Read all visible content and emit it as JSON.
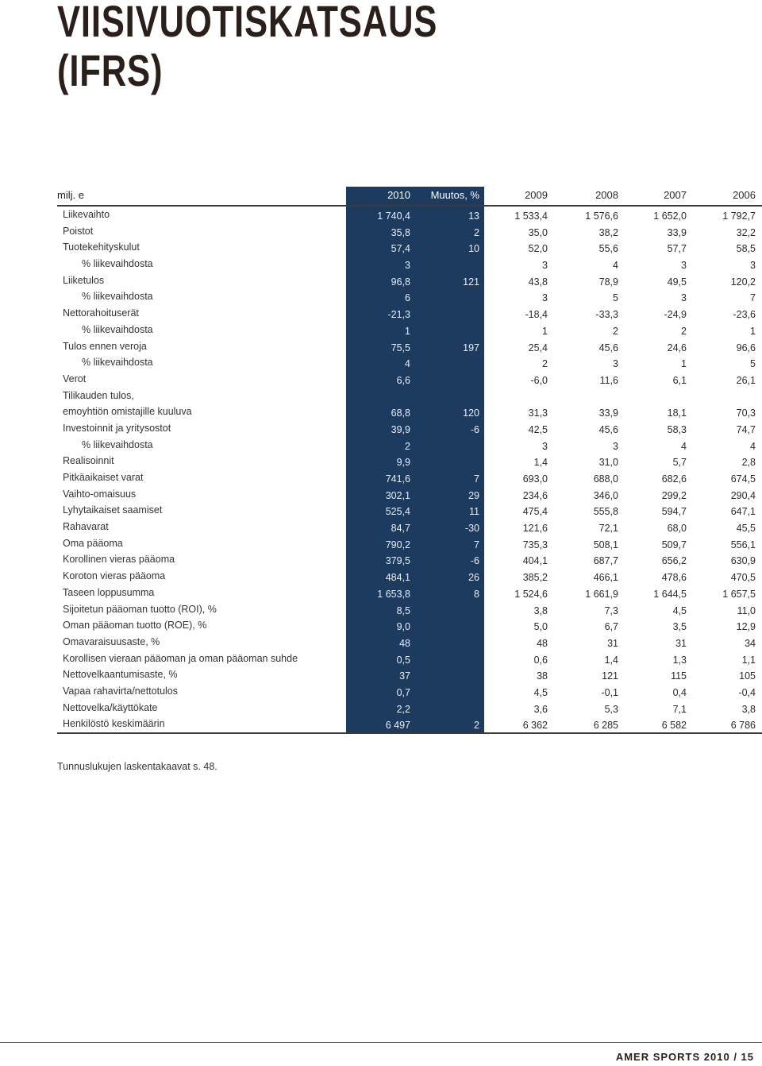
{
  "title": [
    "VIISIVUOTISKATSAUS",
    "(IFRS)"
  ],
  "header": {
    "unit": "milj. e",
    "cols": [
      "2010",
      "Muutos, %",
      "2009",
      "2008",
      "2007",
      "2006"
    ]
  },
  "rows": [
    {
      "label": "Liikevaihto",
      "indent": false,
      "v": [
        "1 740,4",
        "13",
        "1 533,4",
        "1 576,6",
        "1 652,0",
        "1 792,7"
      ]
    },
    {
      "label": "Poistot",
      "indent": false,
      "v": [
        "35,8",
        "2",
        "35,0",
        "38,2",
        "33,9",
        "32,2"
      ]
    },
    {
      "label": "Tuotekehityskulut",
      "indent": false,
      "v": [
        "57,4",
        "10",
        "52,0",
        "55,6",
        "57,7",
        "58,5"
      ]
    },
    {
      "label": "% liikevaihdosta",
      "indent": true,
      "v": [
        "3",
        "",
        "3",
        "4",
        "3",
        "3"
      ]
    },
    {
      "label": "Liiketulos",
      "indent": false,
      "v": [
        "96,8",
        "121",
        "43,8",
        "78,9",
        "49,5",
        "120,2"
      ]
    },
    {
      "label": "% liikevaihdosta",
      "indent": true,
      "v": [
        "6",
        "",
        "3",
        "5",
        "3",
        "7"
      ]
    },
    {
      "label": "Nettorahoituserät",
      "indent": false,
      "v": [
        "-21,3",
        "",
        "-18,4",
        "-33,3",
        "-24,9",
        "-23,6"
      ]
    },
    {
      "label": "% liikevaihdosta",
      "indent": true,
      "v": [
        "1",
        "",
        "1",
        "2",
        "2",
        "1"
      ]
    },
    {
      "label": "Tulos ennen veroja",
      "indent": false,
      "v": [
        "75,5",
        "197",
        "25,4",
        "45,6",
        "24,6",
        "96,6"
      ]
    },
    {
      "label": "% liikevaihdosta",
      "indent": true,
      "v": [
        "4",
        "",
        "2",
        "3",
        "1",
        "5"
      ]
    },
    {
      "label": "Verot",
      "indent": false,
      "v": [
        "6,6",
        "",
        "-6,0",
        "11,6",
        "6,1",
        "26,1"
      ]
    },
    {
      "label": "Tilikauden tulos,",
      "indent": false,
      "v": [
        "",
        "",
        "",
        "",
        "",
        ""
      ]
    },
    {
      "label": "emoyhtiön omistajille kuuluva",
      "indent": false,
      "v": [
        "68,8",
        "120",
        "31,3",
        "33,9",
        "18,1",
        "70,3"
      ]
    },
    {
      "label": "Investoinnit ja yritysostot",
      "indent": false,
      "v": [
        "39,9",
        "-6",
        "42,5",
        "45,6",
        "58,3",
        "74,7"
      ]
    },
    {
      "label": "% liikevaihdosta",
      "indent": true,
      "v": [
        "2",
        "",
        "3",
        "3",
        "4",
        "4"
      ]
    },
    {
      "label": "Realisoinnit",
      "indent": false,
      "v": [
        "9,9",
        "",
        "1,4",
        "31,0",
        "5,7",
        "2,8"
      ]
    },
    {
      "label": "Pitkäaikaiset varat",
      "indent": false,
      "v": [
        "741,6",
        "7",
        "693,0",
        "688,0",
        "682,6",
        "674,5"
      ]
    },
    {
      "label": "Vaihto-omaisuus",
      "indent": false,
      "v": [
        "302,1",
        "29",
        "234,6",
        "346,0",
        "299,2",
        "290,4"
      ]
    },
    {
      "label": "Lyhytaikaiset saamiset",
      "indent": false,
      "v": [
        "525,4",
        "11",
        "475,4",
        "555,8",
        "594,7",
        "647,1"
      ]
    },
    {
      "label": "Rahavarat",
      "indent": false,
      "v": [
        "84,7",
        "-30",
        "121,6",
        "72,1",
        "68,0",
        "45,5"
      ]
    },
    {
      "label": "Oma pääoma",
      "indent": false,
      "v": [
        "790,2",
        "7",
        "735,3",
        "508,1",
        "509,7",
        "556,1"
      ]
    },
    {
      "label": "Korollinen vieras pääoma",
      "indent": false,
      "v": [
        "379,5",
        "-6",
        "404,1",
        "687,7",
        "656,2",
        "630,9"
      ]
    },
    {
      "label": "Koroton vieras pääoma",
      "indent": false,
      "v": [
        "484,1",
        "26",
        "385,2",
        "466,1",
        "478,6",
        "470,5"
      ]
    },
    {
      "label": "Taseen loppusumma",
      "indent": false,
      "v": [
        "1 653,8",
        "8",
        "1 524,6",
        "1 661,9",
        "1 644,5",
        "1 657,5"
      ]
    },
    {
      "label": "Sijoitetun pääoman tuotto (ROI), %",
      "indent": false,
      "v": [
        "8,5",
        "",
        "3,8",
        "7,3",
        "4,5",
        "11,0"
      ]
    },
    {
      "label": "Oman pääoman tuotto (ROE), %",
      "indent": false,
      "v": [
        "9,0",
        "",
        "5,0",
        "6,7",
        "3,5",
        "12,9"
      ]
    },
    {
      "label": "Omavaraisuusaste, %",
      "indent": false,
      "v": [
        "48",
        "",
        "48",
        "31",
        "31",
        "34"
      ]
    },
    {
      "label": "Korollisen vieraan pääoman ja oman pääoman suhde",
      "indent": false,
      "v": [
        "0,5",
        "",
        "0,6",
        "1,4",
        "1,3",
        "1,1"
      ]
    },
    {
      "label": "Nettovelkaantumisaste, %",
      "indent": false,
      "v": [
        "37",
        "",
        "38",
        "121",
        "115",
        "105"
      ]
    },
    {
      "label": "Vapaa rahavirta/nettotulos",
      "indent": false,
      "v": [
        "0,7",
        "",
        "4,5",
        "-0,1",
        "0,4",
        "-0,4"
      ]
    },
    {
      "label": "Nettovelka/käyttökate",
      "indent": false,
      "v": [
        "2,2",
        "",
        "3,6",
        "5,3",
        "7,1",
        "3,8"
      ]
    },
    {
      "label": "Henkilöstö keskimäärin",
      "indent": false,
      "v": [
        "6 497",
        "2",
        "6 362",
        "6 285",
        "6 582",
        "6 786"
      ]
    }
  ],
  "note": "Tunnuslukujen laskentakaavat s. 48.",
  "footer": "AMER SPORTS 2010 / 15",
  "colors": {
    "highlight": "#1d3a5f"
  }
}
